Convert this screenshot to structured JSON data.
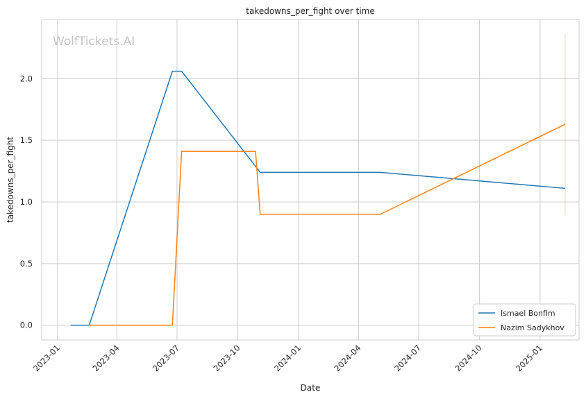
{
  "chart_data": {
    "type": "line",
    "title": "takedowns_per_fight over time",
    "xlabel": "Date",
    "ylabel": "takedowns_per_fight",
    "watermark": "WolfTickets.AI",
    "xlim": [
      "2022-12-08",
      "2025-03-01"
    ],
    "ylim": [
      -0.12,
      2.48
    ],
    "x_ticks": [
      "2023-01-01",
      "2023-04-01",
      "2023-07-01",
      "2023-10-01",
      "2024-01-01",
      "2024-04-01",
      "2024-07-01",
      "2024-10-01",
      "2025-01-01"
    ],
    "x_tick_labels": [
      "2023-01",
      "2023-04",
      "2023-07",
      "2023-10",
      "2024-01",
      "2024-04",
      "2024-07",
      "2024-10",
      "2025-01"
    ],
    "y_ticks": [
      0.0,
      0.5,
      1.0,
      1.5,
      2.0
    ],
    "y_tick_labels": [
      "0.0",
      "0.5",
      "1.0",
      "1.5",
      "2.0"
    ],
    "grid": true,
    "legend_position": "bottom-right",
    "series": [
      {
        "name": "Ismael Bonfim",
        "color": "#1f77b4",
        "x": [
          "2023-01-21",
          "2023-02-18",
          "2023-06-24",
          "2023-07-08",
          "2023-11-04",
          "2024-05-04",
          "2025-02-08"
        ],
        "y": [
          0.0,
          0.0,
          2.06,
          2.06,
          1.24,
          1.24,
          1.11
        ]
      },
      {
        "name": "Nazim Sadykhov",
        "color": "#ff7f0e",
        "x": [
          "2023-02-18",
          "2023-06-24",
          "2023-07-08",
          "2023-10-28",
          "2023-11-04",
          "2024-05-04",
          "2025-02-08"
        ],
        "y": [
          0.0,
          0.0,
          1.41,
          1.41,
          0.9,
          0.9,
          1.63
        ]
      }
    ],
    "error_band": {
      "x": "2025-02-08",
      "ylow": 0.89,
      "yhigh": 2.36,
      "color": "#ff7f0e"
    }
  }
}
